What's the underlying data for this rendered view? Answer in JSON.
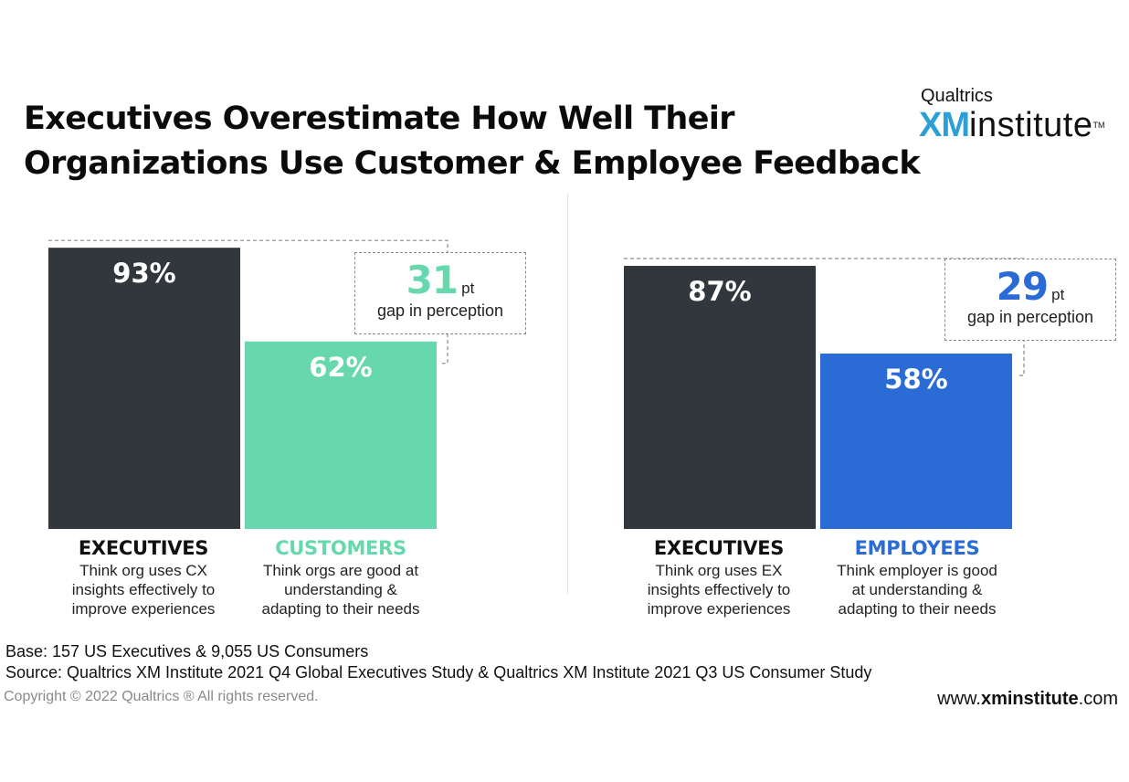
{
  "title": {
    "line1": "Executives Overestimate How Well Their",
    "line2": "Organizations Use Customer & Employee Feedback"
  },
  "logo": {
    "brand": "Qualtrics",
    "xm": "XM",
    "institute": "institute",
    "tm": "TM"
  },
  "colors": {
    "executives": "#31373d",
    "customers": "#67d8ae",
    "employees": "#2a6bd6",
    "dashed": "#8a8a8a"
  },
  "chart_data": [
    {
      "type": "bar",
      "categories": [
        "EXECUTIVES",
        "CUSTOMERS"
      ],
      "values": [
        93,
        62
      ],
      "value_labels": [
        "93%",
        "62%"
      ],
      "descriptions": [
        [
          "Think org uses CX",
          "insights effectively to",
          "improve experiences"
        ],
        [
          "Think orgs are good at",
          "understanding &",
          "adapting to their needs"
        ]
      ],
      "gap": {
        "value": "31",
        "unit": "pt",
        "label": "gap in perception"
      },
      "ylim": [
        0,
        100
      ]
    },
    {
      "type": "bar",
      "categories": [
        "EXECUTIVES",
        "EMPLOYEES"
      ],
      "values": [
        87,
        58
      ],
      "value_labels": [
        "87%",
        "58%"
      ],
      "descriptions": [
        [
          "Think org uses EX",
          "insights effectively to",
          "improve experiences"
        ],
        [
          "Think employer is good",
          "at understanding &",
          "adapting to their needs"
        ]
      ],
      "gap": {
        "value": "29",
        "unit": "pt",
        "label": "gap in perception"
      },
      "ylim": [
        0,
        100
      ]
    }
  ],
  "footer": {
    "base": "Base: 157 US Executives & 9,055 US Consumers",
    "source": "Source: Qualtrics XM Institute 2021 Q4 Global Executives Study & Qualtrics XM Institute 2021 Q3 US Consumer Study",
    "copyright": "Copyright © 2022 Qualtrics ® All rights reserved.",
    "website_prefix": "www.",
    "website_bold": "xminstitute",
    "website_suffix": ".com"
  }
}
